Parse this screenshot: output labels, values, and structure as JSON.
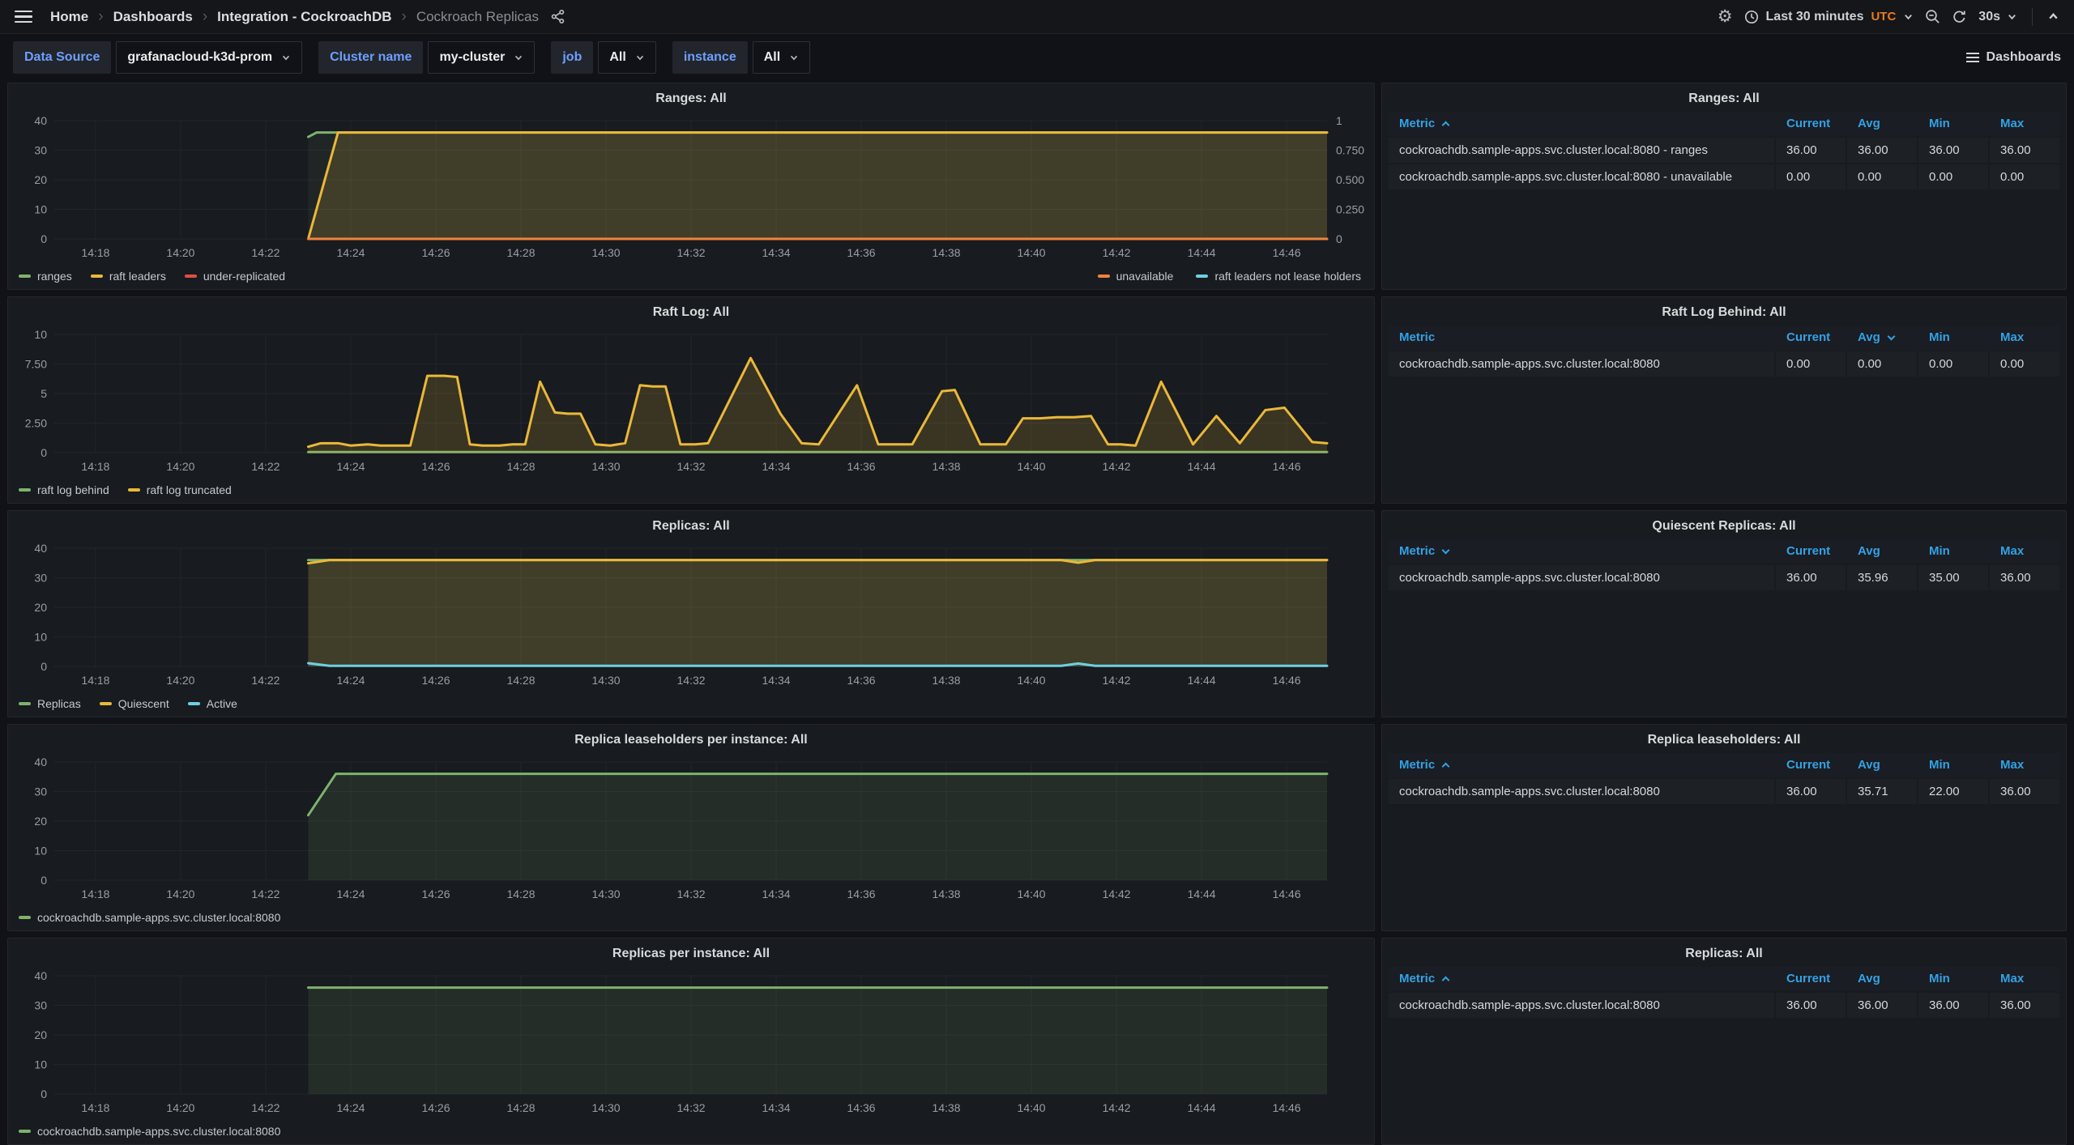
{
  "nav": {
    "breadcrumbs": [
      "Home",
      "Dashboards",
      "Integration - CockroachDB",
      "Cockroach Replicas"
    ],
    "time_range": "Last 30 minutes",
    "timezone": "UTC",
    "refresh_interval": "30s"
  },
  "filters": {
    "data_source": {
      "label": "Data Source",
      "value": "grafanacloud-k3d-prom"
    },
    "cluster": {
      "label": "Cluster name",
      "value": "my-cluster"
    },
    "job": {
      "label": "job",
      "value": "All"
    },
    "instance": {
      "label": "instance",
      "value": "All"
    },
    "dashboards_button": "Dashboards"
  },
  "palette": {
    "green": "#7EB26D",
    "yellow": "#EAB839",
    "red": "#E24D42",
    "orange": "#EF843C",
    "cyan": "#6ED0E0",
    "table_header_blue": "#33a2e5",
    "accent_orange": "#eb7b18"
  },
  "x_domain_minutes": [
    17.03,
    46.95
  ],
  "xticks": [
    "14:18",
    "14:20",
    "14:22",
    "14:24",
    "14:26",
    "14:28",
    "14:30",
    "14:32",
    "14:34",
    "14:36",
    "14:38",
    "14:40",
    "14:42",
    "14:44",
    "14:46"
  ],
  "charts": [
    {
      "id": "ranges",
      "title": "Ranges: All",
      "ylim": [
        0,
        40
      ],
      "yticks": [
        "0",
        "10",
        "20",
        "30",
        "40"
      ],
      "y2lim": [
        0,
        1
      ],
      "y2ticks": [
        "0",
        "0.250",
        "0.500",
        "0.750",
        "1"
      ],
      "series": [
        {
          "name": "ranges",
          "color": "green",
          "fill": 0.08,
          "points": [
            [
              23,
              34.5
            ],
            [
              23.2,
              36
            ],
            [
              46.95,
              36
            ]
          ]
        },
        {
          "name": "raft leaders",
          "color": "yellow",
          "fill": 0.16,
          "points": [
            [
              23,
              0
            ],
            [
              23.7,
              36
            ],
            [
              46.95,
              36
            ]
          ]
        },
        {
          "name": "under-replicated",
          "color": "red",
          "fill": 0,
          "points": [
            [
              23,
              0
            ],
            [
              46.95,
              0
            ]
          ]
        },
        {
          "name": "unavailable",
          "color": "orange",
          "fill": 0,
          "axis": "y2",
          "points": [
            [
              23,
              0
            ],
            [
              46.95,
              0
            ]
          ]
        },
        {
          "name": "raft leaders not lease holders",
          "color": "cyan",
          "fill": 0,
          "axis": "y2",
          "points": []
        }
      ],
      "legend_left": [
        "ranges",
        "raft leaders",
        "under-replicated"
      ],
      "legend_right": [
        "unavailable",
        "raft leaders not lease holders"
      ]
    },
    {
      "id": "raft-log",
      "title": "Raft Log: All",
      "ylim": [
        0,
        10
      ],
      "yticks": [
        "0",
        "2.50",
        "5",
        "7.50",
        "10"
      ],
      "series": [
        {
          "name": "raft log behind",
          "color": "green",
          "fill": 0.08,
          "points": [
            [
              23,
              0.05
            ],
            [
              46.95,
              0.05
            ]
          ]
        },
        {
          "name": "raft log truncated",
          "color": "yellow",
          "fill": 0.16,
          "points": [
            [
              23,
              0.5
            ],
            [
              23.3,
              0.8
            ],
            [
              23.7,
              0.8
            ],
            [
              24,
              0.6
            ],
            [
              24.4,
              0.7
            ],
            [
              24.7,
              0.6
            ],
            [
              25.1,
              0.6
            ],
            [
              25.4,
              0.6
            ],
            [
              25.8,
              6.5
            ],
            [
              26.2,
              6.5
            ],
            [
              26.5,
              6.4
            ],
            [
              26.8,
              0.7
            ],
            [
              27.1,
              0.6
            ],
            [
              27.5,
              0.6
            ],
            [
              27.8,
              0.7
            ],
            [
              28.1,
              0.7
            ],
            [
              28.45,
              6
            ],
            [
              28.8,
              3.4
            ],
            [
              29.1,
              3.3
            ],
            [
              29.4,
              3.3
            ],
            [
              29.75,
              0.7
            ],
            [
              30.1,
              0.6
            ],
            [
              30.45,
              0.8
            ],
            [
              30.8,
              5.7
            ],
            [
              31.1,
              5.6
            ],
            [
              31.4,
              5.6
            ],
            [
              31.75,
              0.7
            ],
            [
              32.1,
              0.7
            ],
            [
              32.4,
              0.8
            ],
            [
              33.4,
              8
            ],
            [
              34.1,
              3.3
            ],
            [
              34.6,
              0.8
            ],
            [
              35,
              0.7
            ],
            [
              35.9,
              5.7
            ],
            [
              36.4,
              0.7
            ],
            [
              36.8,
              0.7
            ],
            [
              37.2,
              0.7
            ],
            [
              37.9,
              5.2
            ],
            [
              38.2,
              5.3
            ],
            [
              38.8,
              0.7
            ],
            [
              39.1,
              0.7
            ],
            [
              39.4,
              0.7
            ],
            [
              39.8,
              2.9
            ],
            [
              40.2,
              2.9
            ],
            [
              40.6,
              3
            ],
            [
              41,
              3
            ],
            [
              41.4,
              3.1
            ],
            [
              41.8,
              0.7
            ],
            [
              42.1,
              0.7
            ],
            [
              42.45,
              0.6
            ],
            [
              43.05,
              6
            ],
            [
              43.8,
              0.7
            ],
            [
              44.35,
              3.1
            ],
            [
              44.9,
              0.8
            ],
            [
              45.5,
              3.6
            ],
            [
              45.95,
              3.8
            ],
            [
              46.6,
              0.9
            ],
            [
              46.95,
              0.8
            ]
          ]
        }
      ],
      "legend_left": [
        "raft log behind",
        "raft log truncated"
      ]
    },
    {
      "id": "replicas",
      "title": "Replicas: All",
      "ylim": [
        0,
        40
      ],
      "yticks": [
        "0",
        "10",
        "20",
        "30",
        "40"
      ],
      "series": [
        {
          "name": "Replicas",
          "color": "green",
          "fill": 0.08,
          "points": [
            [
              23,
              36
            ],
            [
              46.95,
              36
            ]
          ]
        },
        {
          "name": "Quiescent",
          "color": "yellow",
          "fill": 0.16,
          "points": [
            [
              23,
              34.9
            ],
            [
              23.5,
              36
            ],
            [
              40.7,
              36
            ],
            [
              41.1,
              35.1
            ],
            [
              41.5,
              36
            ],
            [
              46.95,
              36
            ]
          ]
        },
        {
          "name": "Active",
          "color": "cyan",
          "fill": 0.08,
          "points": [
            [
              23,
              1.1
            ],
            [
              23.5,
              0.2
            ],
            [
              40.7,
              0.2
            ],
            [
              41.1,
              1
            ],
            [
              41.5,
              0.2
            ],
            [
              46.95,
              0.2
            ]
          ]
        }
      ],
      "legend_left": [
        "Replicas",
        "Quiescent",
        "Active"
      ]
    },
    {
      "id": "leaseholders-per-instance",
      "title": "Replica leaseholders per instance: All",
      "ylim": [
        0,
        40
      ],
      "yticks": [
        "0",
        "10",
        "20",
        "30",
        "40"
      ],
      "series": [
        {
          "name": "cockroachdb.sample-apps.svc.cluster.local:8080",
          "color": "green",
          "fill": 0.12,
          "points": [
            [
              23,
              22
            ],
            [
              23.65,
              36
            ],
            [
              46.95,
              36
            ]
          ]
        }
      ],
      "legend_left": [
        "cockroachdb.sample-apps.svc.cluster.local:8080"
      ]
    },
    {
      "id": "replicas-per-instance",
      "title": "Replicas per instance: All",
      "ylim": [
        0,
        40
      ],
      "yticks": [
        "0",
        "10",
        "20",
        "30",
        "40"
      ],
      "series": [
        {
          "name": "cockroachdb.sample-apps.svc.cluster.local:8080",
          "color": "green",
          "fill": 0.12,
          "points": [
            [
              23,
              36
            ],
            [
              46.95,
              36
            ]
          ]
        }
      ],
      "legend_left": [
        "cockroachdb.sample-apps.svc.cluster.local:8080"
      ]
    }
  ],
  "tables": [
    {
      "id": "ranges",
      "title": "Ranges: All",
      "columns": [
        "Metric",
        "Current",
        "Avg",
        "Min",
        "Max"
      ],
      "sort_column": "Metric",
      "sort_dir": "asc",
      "rows": [
        [
          "cockroachdb.sample-apps.svc.cluster.local:8080 - ranges",
          "36.00",
          "36.00",
          "36.00",
          "36.00"
        ],
        [
          "cockroachdb.sample-apps.svc.cluster.local:8080 - unavailable",
          "0.00",
          "0.00",
          "0.00",
          "0.00"
        ]
      ]
    },
    {
      "id": "raft-log-behind",
      "title": "Raft Log Behind: All",
      "columns": [
        "Metric",
        "Current",
        "Avg",
        "Min",
        "Max"
      ],
      "sort_column": "Avg",
      "sort_dir": "desc",
      "rows": [
        [
          "cockroachdb.sample-apps.svc.cluster.local:8080",
          "0.00",
          "0.00",
          "0.00",
          "0.00"
        ]
      ]
    },
    {
      "id": "quiescent-replicas",
      "title": "Quiescent Replicas: All",
      "columns": [
        "Metric",
        "Current",
        "Avg",
        "Min",
        "Max"
      ],
      "sort_column": "Metric",
      "sort_dir": "desc",
      "rows": [
        [
          "cockroachdb.sample-apps.svc.cluster.local:8080",
          "36.00",
          "35.96",
          "35.00",
          "36.00"
        ]
      ]
    },
    {
      "id": "replica-leaseholders",
      "title": "Replica leaseholders: All",
      "columns": [
        "Metric",
        "Current",
        "Avg",
        "Min",
        "Max"
      ],
      "sort_column": "Metric",
      "sort_dir": "asc",
      "rows": [
        [
          "cockroachdb.sample-apps.svc.cluster.local:8080",
          "36.00",
          "35.71",
          "22.00",
          "36.00"
        ]
      ]
    },
    {
      "id": "replicas",
      "title": "Replicas: All",
      "columns": [
        "Metric",
        "Current",
        "Avg",
        "Min",
        "Max"
      ],
      "sort_column": "Metric",
      "sort_dir": "asc",
      "rows": [
        [
          "cockroachdb.sample-apps.svc.cluster.local:8080",
          "36.00",
          "36.00",
          "36.00",
          "36.00"
        ]
      ]
    }
  ]
}
